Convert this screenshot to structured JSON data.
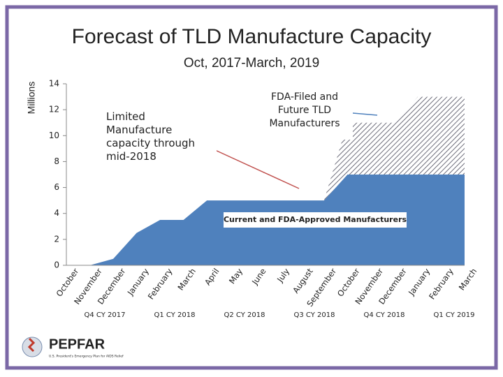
{
  "chart_data": {
    "type": "stacked-area",
    "title": "Forecast of TLD Manufacture Capacity",
    "subtitle": "Oct, 2017-March, 2019",
    "y_label": "Millions",
    "categories": [
      "October",
      "November",
      "December",
      "January",
      "February",
      "March",
      "April",
      "May",
      "June",
      "July",
      "August",
      "September",
      "October",
      "November",
      "December",
      "January",
      "February",
      "March"
    ],
    "quarter_labels": [
      "Q4 CY 2017",
      "Q1 CY 2018",
      "Q2 CY 2018",
      "Q3 CY 2018",
      "Q4 CY 2018",
      "Q1 CY 2019"
    ],
    "series": [
      {
        "name": "Current and FDA-Approved Manufacturers",
        "color": "#4f81bd",
        "values": [
          0,
          0,
          0.5,
          2.5,
          3.5,
          3.5,
          5,
          5,
          5,
          5,
          5,
          5,
          7,
          7,
          7,
          7,
          7,
          7
        ]
      },
      {
        "name": "FDA-Filed and Future TLD Manufacturers",
        "color": "#7f7f7f",
        "pattern": "hatch",
        "values": [
          0,
          0,
          0,
          0,
          0,
          0,
          0,
          0,
          0,
          0,
          0,
          0,
          4,
          4,
          4,
          6,
          6,
          6
        ]
      }
    ],
    "annotations": [
      "Limited Manufacture capacity through mid-2018"
    ],
    "ylim": [
      0,
      14
    ],
    "yticks": [
      0,
      2,
      4,
      6,
      8,
      10,
      12,
      14
    ],
    "grid": false
  },
  "logo": {
    "name": "PEPFAR",
    "tagline": "U.S. President's Emergency Plan for AIDS Relief"
  }
}
